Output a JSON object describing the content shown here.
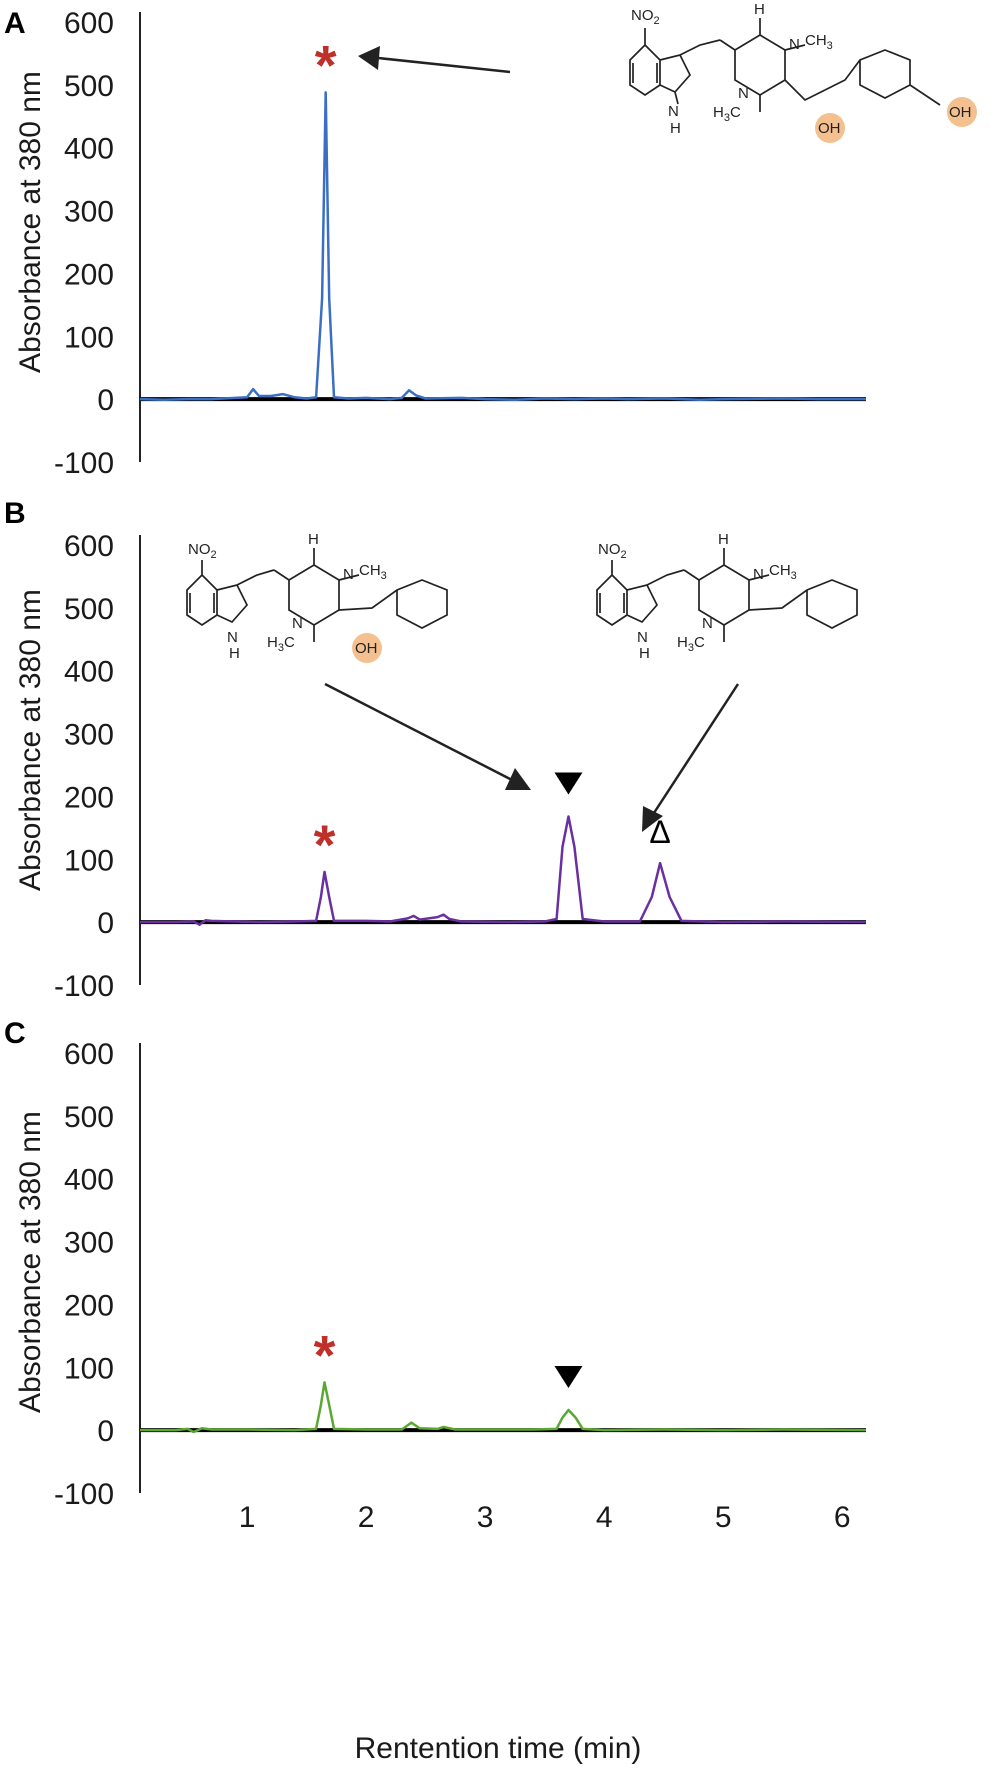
{
  "chart_data": [
    {
      "type": "line",
      "panel_label": "A",
      "ylabel": "Absorbance at 380 nm",
      "ylim": [
        -100,
        600
      ],
      "yticks": [
        -100,
        0,
        100,
        200,
        300,
        400,
        500,
        600
      ],
      "xlim": [
        0.1,
        6.2
      ],
      "series": [
        {
          "color": "#3b6fc4",
          "points": [
            [
              0.1,
              0
            ],
            [
              0.3,
              -1
            ],
            [
              0.5,
              0
            ],
            [
              0.7,
              0
            ],
            [
              0.9,
              2
            ],
            [
              1.0,
              3
            ],
            [
              1.05,
              16
            ],
            [
              1.1,
              5
            ],
            [
              1.2,
              5
            ],
            [
              1.3,
              8
            ],
            [
              1.4,
              3
            ],
            [
              1.5,
              1
            ],
            [
              1.58,
              3
            ],
            [
              1.63,
              160
            ],
            [
              1.66,
              488
            ],
            [
              1.69,
              160
            ],
            [
              1.73,
              3
            ],
            [
              1.85,
              1
            ],
            [
              2.0,
              2
            ],
            [
              2.2,
              0
            ],
            [
              2.3,
              2
            ],
            [
              2.36,
              14
            ],
            [
              2.42,
              6
            ],
            [
              2.5,
              1
            ],
            [
              2.8,
              2
            ],
            [
              3.0,
              0
            ],
            [
              3.25,
              -1
            ],
            [
              3.5,
              1
            ],
            [
              3.75,
              0
            ],
            [
              4.0,
              1
            ],
            [
              4.2,
              0
            ],
            [
              4.5,
              1
            ],
            [
              4.8,
              -1
            ],
            [
              5.0,
              0
            ],
            [
              5.5,
              1
            ],
            [
              5.8,
              0
            ],
            [
              6.2,
              0
            ]
          ]
        }
      ],
      "annotations": [
        {
          "symbol": "*",
          "x": 1.66,
          "color": "#c0302b"
        }
      ]
    },
    {
      "type": "line",
      "panel_label": "B",
      "ylabel": "Absorbance at 380 nm",
      "ylim": [
        -100,
        600
      ],
      "yticks": [
        -100,
        0,
        100,
        200,
        300,
        400,
        500,
        600
      ],
      "xlim": [
        0.1,
        6.2
      ],
      "series": [
        {
          "color": "#6a2fa0",
          "points": [
            [
              0.1,
              0
            ],
            [
              0.4,
              0
            ],
            [
              0.55,
              1
            ],
            [
              0.6,
              -4
            ],
            [
              0.65,
              3
            ],
            [
              0.7,
              2
            ],
            [
              0.9,
              1
            ],
            [
              1.1,
              0
            ],
            [
              1.4,
              1
            ],
            [
              1.58,
              2
            ],
            [
              1.62,
              40
            ],
            [
              1.65,
              80
            ],
            [
              1.69,
              40
            ],
            [
              1.73,
              2
            ],
            [
              2.0,
              2
            ],
            [
              2.2,
              1
            ],
            [
              2.35,
              6
            ],
            [
              2.4,
              10
            ],
            [
              2.45,
              4
            ],
            [
              2.6,
              8
            ],
            [
              2.65,
              12
            ],
            [
              2.7,
              5
            ],
            [
              2.8,
              1
            ],
            [
              3.2,
              0
            ],
            [
              3.5,
              1
            ],
            [
              3.6,
              5
            ],
            [
              3.65,
              120
            ],
            [
              3.7,
              168
            ],
            [
              3.75,
              120
            ],
            [
              3.82,
              5
            ],
            [
              4.0,
              1
            ],
            [
              4.3,
              1
            ],
            [
              4.4,
              40
            ],
            [
              4.47,
              94
            ],
            [
              4.55,
              40
            ],
            [
              4.65,
              2
            ],
            [
              5.0,
              0
            ],
            [
              5.5,
              1
            ],
            [
              6.2,
              0
            ]
          ]
        }
      ],
      "annotations": [
        {
          "symbol": "*",
          "x": 1.65,
          "color": "#c0302b"
        },
        {
          "symbol": "▼",
          "x": 3.7,
          "color": "#000000"
        },
        {
          "symbol": "Δ",
          "x": 4.47,
          "color": "#000000"
        }
      ]
    },
    {
      "type": "line",
      "panel_label": "C",
      "ylabel": "Absorbance at 380 nm",
      "xlabel": "Rentention time (min)",
      "ylim": [
        -100,
        600
      ],
      "yticks": [
        -100,
        0,
        100,
        200,
        300,
        400,
        500,
        600
      ],
      "xlim": [
        0.1,
        6.2
      ],
      "xticks": [
        1,
        2,
        3,
        4,
        5,
        6
      ],
      "series": [
        {
          "color": "#5aa832",
          "points": [
            [
              0.1,
              0
            ],
            [
              0.4,
              0
            ],
            [
              0.5,
              2
            ],
            [
              0.55,
              -3
            ],
            [
              0.62,
              3
            ],
            [
              0.7,
              1
            ],
            [
              1.0,
              1
            ],
            [
              1.4,
              0
            ],
            [
              1.58,
              2
            ],
            [
              1.62,
              40
            ],
            [
              1.65,
              76
            ],
            [
              1.69,
              40
            ],
            [
              1.73,
              2
            ],
            [
              2.0,
              1
            ],
            [
              2.3,
              1
            ],
            [
              2.38,
              12
            ],
            [
              2.45,
              3
            ],
            [
              2.6,
              2
            ],
            [
              2.65,
              5
            ],
            [
              2.75,
              1
            ],
            [
              3.4,
              1
            ],
            [
              3.6,
              2
            ],
            [
              3.65,
              20
            ],
            [
              3.7,
              32
            ],
            [
              3.76,
              20
            ],
            [
              3.82,
              2
            ],
            [
              4.0,
              0
            ],
            [
              4.5,
              1
            ],
            [
              5.0,
              0
            ],
            [
              5.5,
              1
            ],
            [
              6.2,
              0
            ]
          ]
        }
      ],
      "annotations": [
        {
          "symbol": "*",
          "x": 1.65,
          "color": "#c0302b"
        },
        {
          "symbol": "▼",
          "x": 3.7,
          "color": "#000000"
        }
      ]
    }
  ],
  "molecules": {
    "nitro": "NO",
    "nitro_sub": "2",
    "nh": "N",
    "h": "H",
    "n": "N",
    "ch3": "CH",
    "ch3_sub": "3",
    "h3c": "H",
    "h3c_sub": "3",
    "h3c_c": "C",
    "oh": "OH",
    "highlight_color": "#f4c08f"
  }
}
